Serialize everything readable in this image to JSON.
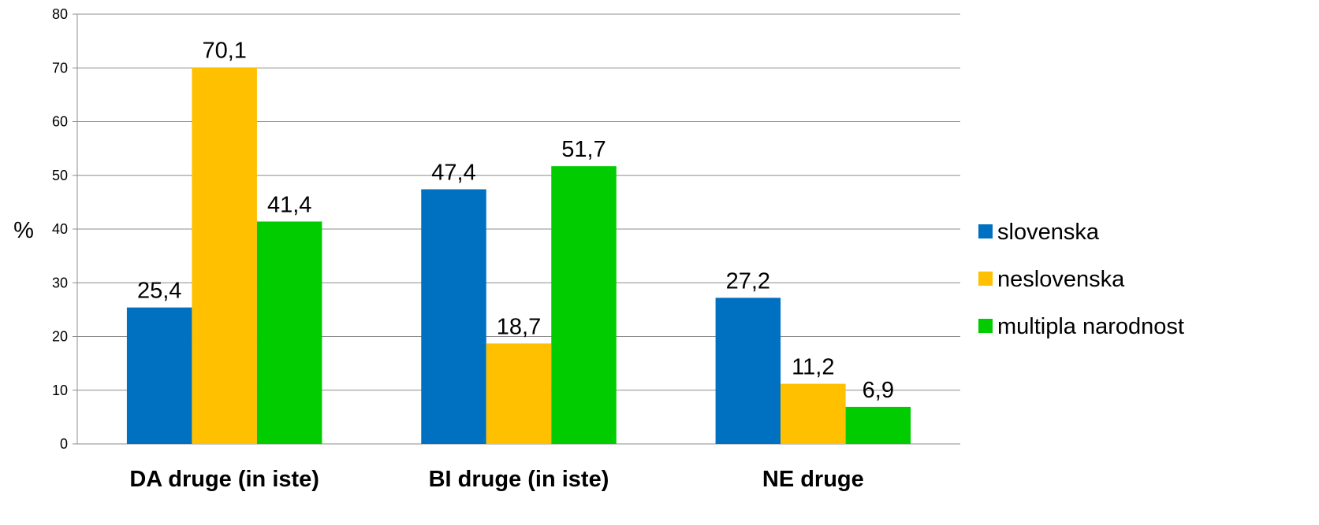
{
  "chart_data": {
    "type": "bar",
    "ylabel": "%",
    "xlabel": "",
    "ylim": [
      0,
      80
    ],
    "ytick_step": 10,
    "grid": true,
    "legend_position": "right",
    "categories": [
      "DA druge (in iste)",
      "BI druge (in iste)",
      "NE druge"
    ],
    "series": [
      {
        "name": "slovenska",
        "color": "#0070C0",
        "values": [
          25.4,
          47.4,
          27.2
        ],
        "labels": [
          "25,4",
          "47,4",
          "27,2"
        ]
      },
      {
        "name": "neslovenska",
        "color": "#FFC000",
        "values": [
          70.1,
          18.7,
          11.2
        ],
        "labels": [
          "70,1",
          "18,7",
          "11,2"
        ]
      },
      {
        "name": "multipla narodnost",
        "color": "#00CC00",
        "values": [
          41.4,
          51.7,
          6.9
        ],
        "labels": [
          "41,4",
          "51,7",
          "6,9"
        ]
      }
    ]
  }
}
